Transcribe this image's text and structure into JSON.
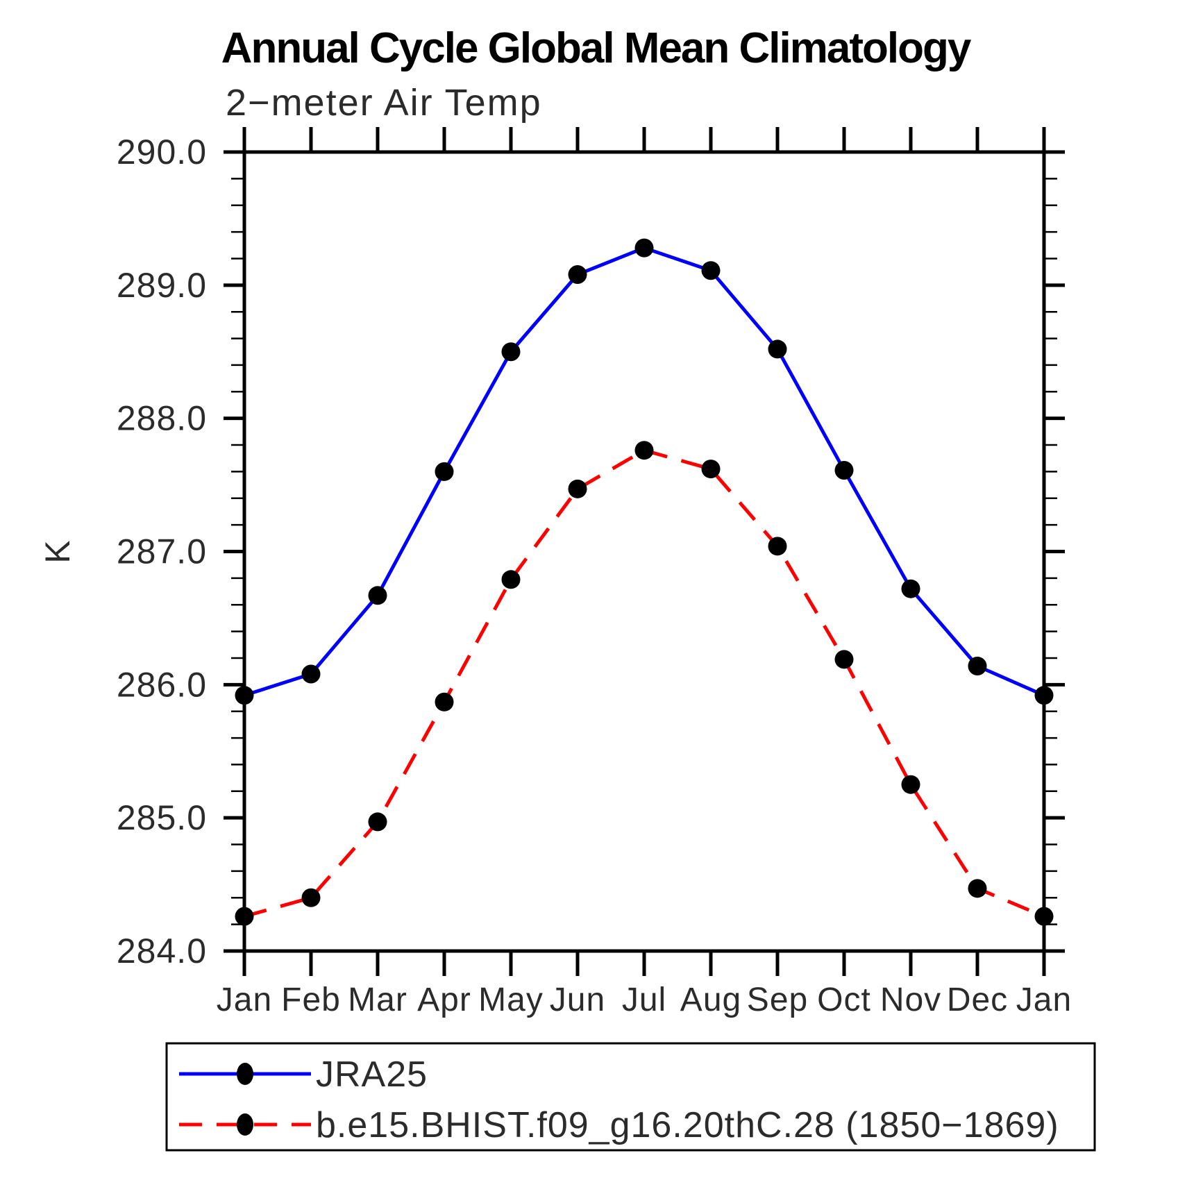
{
  "title": "Annual Cycle Global Mean Climatology",
  "subtitle": "2−meter Air Temp",
  "ylabel": "K",
  "chart_data": {
    "type": "line",
    "x_categories": [
      "Jan",
      "Feb",
      "Mar",
      "Apr",
      "May",
      "Jun",
      "Jul",
      "Aug",
      "Sep",
      "Oct",
      "Nov",
      "Dec",
      "Jan"
    ],
    "ylim": [
      284.0,
      290.0
    ],
    "ytick_major_step": 1.0,
    "ytick_minor_step": 0.2,
    "ytick_labels": [
      "290.0",
      "289.0",
      "288.0",
      "287.0",
      "286.0",
      "285.0",
      "284.0"
    ],
    "grid": false,
    "legend_position": "bottom",
    "marker_color": "#000000",
    "marker_shape": "filled-circle",
    "series": [
      {
        "name": "JRA25",
        "color": "#0000ff",
        "linestyle": "solid",
        "values": [
          285.92,
          286.08,
          286.67,
          287.6,
          288.5,
          289.08,
          289.28,
          289.11,
          288.52,
          287.61,
          286.72,
          286.14,
          285.92
        ]
      },
      {
        "name": "b.e15.BHIST.f09_g16.20thC.28 (1850−1869)",
        "color": "#ff0000",
        "linestyle": "dashed",
        "values": [
          284.26,
          284.4,
          284.97,
          285.87,
          286.79,
          287.47,
          287.76,
          287.62,
          287.04,
          286.19,
          285.25,
          284.47,
          284.26
        ]
      }
    ]
  }
}
